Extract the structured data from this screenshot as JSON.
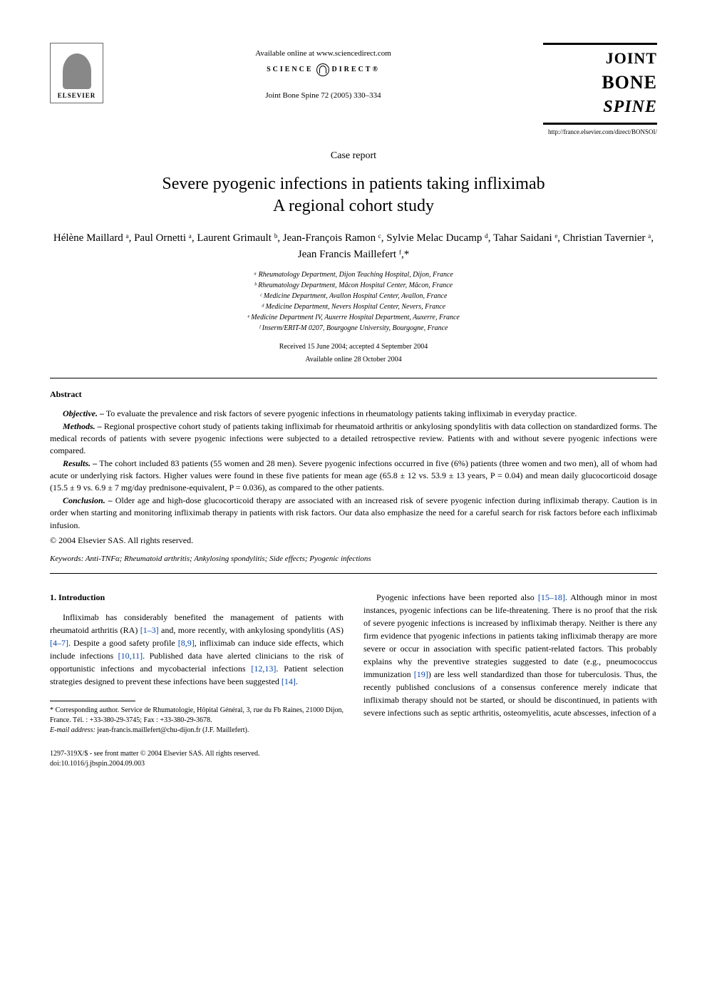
{
  "header": {
    "elsevier_label": "ELSEVIER",
    "available_online": "Available online at www.sciencedirect.com",
    "sciencedirect_left": "SCIENCE",
    "sciencedirect_right": "DIRECT®",
    "journal_ref": "Joint Bone Spine 72 (2005) 330–334",
    "journal_logo": {
      "line1": "JOINT",
      "line2": "BONE",
      "line3": "SPINE"
    },
    "journal_url": "http://france.elsevier.com/direct/BONSOI/"
  },
  "article": {
    "type": "Case report",
    "title_line1": "Severe pyogenic infections in patients taking infliximab",
    "title_line2": "A regional cohort study",
    "authors": "Hélène Maillard ᵃ, Paul Ornetti ᵃ, Laurent Grimault ᵇ, Jean-François Ramon ᶜ, Sylvie Melac Ducamp ᵈ, Tahar Saidani ᵉ, Christian Tavernier ᵃ, Jean Francis Maillefert ᶠ,*",
    "affiliations": [
      "ᵃ Rheumatology Department, Dijon Teaching Hospital, Dijon, France",
      "ᵇ Rheumatology Department, Mâcon Hospital Center, Mâcon, France",
      "ᶜ Medicine Department, Avallon Hospital Center, Avallon, France",
      "ᵈ Medicine Department, Nevers Hospital Center, Nevers, France",
      "ᵉ Medicine Department IV, Auxerre Hospital Department, Auxerre, France",
      "ᶠ Inserm/ERIT-M 0207, Bourgogne University, Bourgogne, France"
    ],
    "received": "Received 15 June 2004; accepted 4 September 2004",
    "online": "Available online 28 October 2004"
  },
  "abstract": {
    "heading": "Abstract",
    "objective_label": "Objective. –",
    "objective_text": " To evaluate the prevalence and risk factors of severe pyogenic infections in rheumatology patients taking infliximab in everyday practice.",
    "methods_label": "Methods. –",
    "methods_text": " Regional prospective cohort study of patients taking infliximab for rheumatoid arthritis or ankylosing spondylitis with data collection on standardized forms. The medical records of patients with severe pyogenic infections were subjected to a detailed retrospective review. Patients with and without severe pyogenic infections were compared.",
    "results_label": "Results. –",
    "results_text": " The cohort included 83 patients (55 women and 28 men). Severe pyogenic infections occurred in five (6%) patients (three women and two men), all of whom had acute or underlying risk factors. Higher values were found in these five patients for mean age (65.8 ± 12 vs. 53.9 ± 13 years, P = 0.04) and mean daily glucocorticoid dosage (15.5 ± 9 vs. 6.9 ± 7 mg/day prednisone-equivalent, P = 0.036), as compared to the other patients.",
    "conclusion_label": "Conclusion. –",
    "conclusion_text": " Older age and high-dose glucocorticoid therapy are associated with an increased risk of severe pyogenic infection during infliximab therapy. Caution is in order when starting and monitoring infliximab therapy in patients with risk factors. Our data also emphasize the need for a careful search for risk factors before each infliximab infusion.",
    "copyright": "© 2004 Elsevier SAS. All rights reserved.",
    "keywords_label": "Keywords:",
    "keywords_text": " Anti-TNFα; Rheumatoid arthritis; Ankylosing spondylitis; Side effects; Pyogenic infections"
  },
  "body": {
    "intro_heading": "1. Introduction",
    "left_para_pre": "Infliximab has considerably benefited the management of patients with rheumatoid arthritis (RA) ",
    "ref_1_3": "[1–3]",
    "left_para_mid1": " and, more recently, with ankylosing spondylitis (AS) ",
    "ref_4_7": "[4–7]",
    "left_para_mid2": ". Despite a good safety profile ",
    "ref_8_9": "[8,9]",
    "left_para_mid3": ", infliximab can induce side effects, which include infections ",
    "ref_10_11": "[10,11]",
    "left_para_mid4": ". Published data have alerted clinicians to the risk of opportunistic infections and mycobacterial infections ",
    "ref_12_13": "[12,13]",
    "left_para_mid5": ". Patient selection strategies designed to prevent these infections have been suggested ",
    "ref_14": "[14]",
    "left_para_end": ".",
    "right_para_pre": "Pyogenic infections have been reported also ",
    "ref_15_18": "[15–18]",
    "right_para_mid1": ". Although minor in most instances, pyogenic infections can be life-threatening. There is no proof that the risk of severe pyogenic infections is increased by infliximab therapy. Neither is there any firm evidence that pyogenic infections in patients taking infliximab therapy are more severe or occur in association with specific patient-related factors. This probably explains why the preventive strategies suggested to date (e.g., pneumococcus immunization ",
    "ref_19": "[19]",
    "right_para_mid2": ") are less well standardized than those for tuberculosis. Thus, the recently published conclusions of a consensus conference merely indicate that infliximab therapy should not be started, or should be discontinued, in patients with severe infections such as septic arthritis, osteomyelitis, acute abscesses, infection of a"
  },
  "footnote": {
    "corresponding": "* Corresponding author. Service de Rhumatologie, Hôpital Général, 3, rue du Fb Raines, 21000 Dijon, France. Tél. : +33-380-29-3745; Fax : +33-380-29-3678.",
    "email_label": "E-mail address:",
    "email_value": " jean-francis.maillefert@chu-dijon.fr (J.F. Maillefert)."
  },
  "footer": {
    "issn": "1297-319X/$ - see front matter © 2004 Elsevier SAS. All rights reserved.",
    "doi": "doi:10.1016/j.jbspin.2004.09.003"
  },
  "colors": {
    "link": "#0645ad",
    "text": "#000000",
    "bg": "#ffffff"
  }
}
